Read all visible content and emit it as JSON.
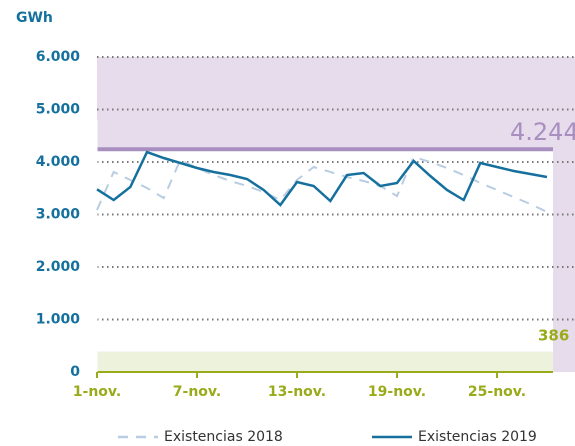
{
  "chart_data": {
    "type": "line",
    "y_label": "GWh",
    "categories": [
      "1-nov.",
      null,
      null,
      null,
      null,
      null,
      "7-nov.",
      null,
      null,
      null,
      null,
      null,
      "13-nov.",
      null,
      null,
      null,
      null,
      null,
      "19-nov.",
      null,
      null,
      null,
      null,
      null,
      "25-nov.",
      null,
      null,
      null
    ],
    "series": [
      {
        "name": "Existencias 2018",
        "color": "#b8cde2",
        "dashed": true,
        "values": [
          3086,
          3810,
          3657,
          3505,
          3314,
          4038,
          3886,
          3752,
          3638,
          3543,
          3429,
          3276,
          3657,
          3905,
          3810,
          3714,
          3638,
          3543,
          3352,
          4095,
          4000,
          3886,
          3752,
          3600,
          3467,
          3333,
          3200,
          3048
        ]
      },
      {
        "name": "Existencias 2019",
        "color": "#15709e",
        "dashed": false,
        "values": [
          3480,
          3276,
          3524,
          4190,
          4076,
          3981,
          3886,
          3810,
          3752,
          3676,
          3467,
          3181,
          3619,
          3543,
          3257,
          3752,
          3790,
          3543,
          3600,
          4019,
          3733,
          3467,
          3276,
          3981,
          3905,
          3829,
          3771,
          3714
        ]
      }
    ],
    "ylim": [
      0,
      6000
    ],
    "yticks": [
      0,
      {
        "value": 1000,
        "label": "1.000"
      },
      {
        "value": 2000,
        "label": "2.000"
      },
      {
        "value": 3000,
        "label": "3.000"
      },
      {
        "value": 4000,
        "label": "4.000"
      },
      {
        "value": 5000,
        "label": "5.000"
      },
      {
        "value": 6000,
        "label": "6.000"
      }
    ],
    "grid": true,
    "upper_band": {
      "value": 4244,
      "label": "4.244",
      "color": "#e6dcec",
      "line_color": "#a88fc0"
    },
    "lower_band": {
      "value": 386,
      "label": "386",
      "color": "#edf2dc",
      "label_color": "#99ab1a"
    }
  }
}
